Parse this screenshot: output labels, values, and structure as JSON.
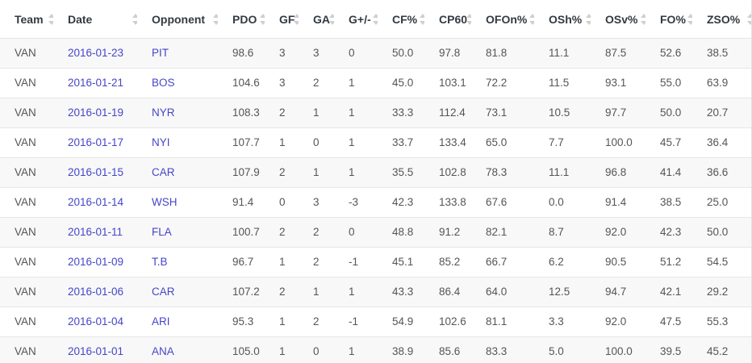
{
  "colors": {
    "link": "#4545cb",
    "header_text": "#333a41",
    "body_text": "#555555",
    "stripe": "#f8f8f8",
    "border": "#e6e6e6",
    "sort_icon": "#cfcfcf"
  },
  "table": {
    "columns": [
      {
        "key": "team",
        "label": "Team",
        "link": false
      },
      {
        "key": "date",
        "label": "Date",
        "link": true
      },
      {
        "key": "opponent",
        "label": "Opponent",
        "link": true
      },
      {
        "key": "pdo",
        "label": "PDO",
        "link": false
      },
      {
        "key": "gf",
        "label": "GF",
        "link": false
      },
      {
        "key": "ga",
        "label": "GA",
        "link": false
      },
      {
        "key": "gpm",
        "label": "G+/-",
        "link": false
      },
      {
        "key": "cf",
        "label": "CF%",
        "link": false
      },
      {
        "key": "cp60",
        "label": "CP60",
        "link": false
      },
      {
        "key": "ofon",
        "label": "OFOn%",
        "link": false
      },
      {
        "key": "osh",
        "label": "OSh%",
        "link": false
      },
      {
        "key": "osv",
        "label": "OSv%",
        "link": false
      },
      {
        "key": "fo",
        "label": "FO%",
        "link": false
      },
      {
        "key": "zso",
        "label": "ZSO%",
        "link": false
      }
    ],
    "rows": [
      {
        "team": "VAN",
        "date": "2016-01-23",
        "opponent": "PIT",
        "pdo": "98.6",
        "gf": "3",
        "ga": "3",
        "gpm": "0",
        "cf": "50.0",
        "cp60": "97.8",
        "ofon": "81.8",
        "osh": "11.1",
        "osv": "87.5",
        "fo": "52.6",
        "zso": "38.5"
      },
      {
        "team": "VAN",
        "date": "2016-01-21",
        "opponent": "BOS",
        "pdo": "104.6",
        "gf": "3",
        "ga": "2",
        "gpm": "1",
        "cf": "45.0",
        "cp60": "103.1",
        "ofon": "72.2",
        "osh": "11.5",
        "osv": "93.1",
        "fo": "55.0",
        "zso": "63.9"
      },
      {
        "team": "VAN",
        "date": "2016-01-19",
        "opponent": "NYR",
        "pdo": "108.3",
        "gf": "2",
        "ga": "1",
        "gpm": "1",
        "cf": "33.3",
        "cp60": "112.4",
        "ofon": "73.1",
        "osh": "10.5",
        "osv": "97.7",
        "fo": "50.0",
        "zso": "20.7"
      },
      {
        "team": "VAN",
        "date": "2016-01-17",
        "opponent": "NYI",
        "pdo": "107.7",
        "gf": "1",
        "ga": "0",
        "gpm": "1",
        "cf": "33.7",
        "cp60": "133.4",
        "ofon": "65.0",
        "osh": "7.7",
        "osv": "100.0",
        "fo": "45.7",
        "zso": "36.4"
      },
      {
        "team": "VAN",
        "date": "2016-01-15",
        "opponent": "CAR",
        "pdo": "107.9",
        "gf": "2",
        "ga": "1",
        "gpm": "1",
        "cf": "35.5",
        "cp60": "102.8",
        "ofon": "78.3",
        "osh": "11.1",
        "osv": "96.8",
        "fo": "41.4",
        "zso": "36.6"
      },
      {
        "team": "VAN",
        "date": "2016-01-14",
        "opponent": "WSH",
        "pdo": "91.4",
        "gf": "0",
        "ga": "3",
        "gpm": "-3",
        "cf": "42.3",
        "cp60": "133.8",
        "ofon": "67.6",
        "osh": "0.0",
        "osv": "91.4",
        "fo": "38.5",
        "zso": "25.0"
      },
      {
        "team": "VAN",
        "date": "2016-01-11",
        "opponent": "FLA",
        "pdo": "100.7",
        "gf": "2",
        "ga": "2",
        "gpm": "0",
        "cf": "48.8",
        "cp60": "91.2",
        "ofon": "82.1",
        "osh": "8.7",
        "osv": "92.0",
        "fo": "42.3",
        "zso": "50.0"
      },
      {
        "team": "VAN",
        "date": "2016-01-09",
        "opponent": "T.B",
        "pdo": "96.7",
        "gf": "1",
        "ga": "2",
        "gpm": "-1",
        "cf": "45.1",
        "cp60": "85.2",
        "ofon": "66.7",
        "osh": "6.2",
        "osv": "90.5",
        "fo": "51.2",
        "zso": "54.5"
      },
      {
        "team": "VAN",
        "date": "2016-01-06",
        "opponent": "CAR",
        "pdo": "107.2",
        "gf": "2",
        "ga": "1",
        "gpm": "1",
        "cf": "43.3",
        "cp60": "86.4",
        "ofon": "64.0",
        "osh": "12.5",
        "osv": "94.7",
        "fo": "42.1",
        "zso": "29.2"
      },
      {
        "team": "VAN",
        "date": "2016-01-04",
        "opponent": "ARI",
        "pdo": "95.3",
        "gf": "1",
        "ga": "2",
        "gpm": "-1",
        "cf": "54.9",
        "cp60": "102.6",
        "ofon": "81.1",
        "osh": "3.3",
        "osv": "92.0",
        "fo": "47.5",
        "zso": "55.3"
      },
      {
        "team": "VAN",
        "date": "2016-01-01",
        "opponent": "ANA",
        "pdo": "105.0",
        "gf": "1",
        "ga": "0",
        "gpm": "1",
        "cf": "38.9",
        "cp60": "85.6",
        "ofon": "83.3",
        "osh": "5.0",
        "osv": "100.0",
        "fo": "39.5",
        "zso": "45.2"
      }
    ]
  }
}
